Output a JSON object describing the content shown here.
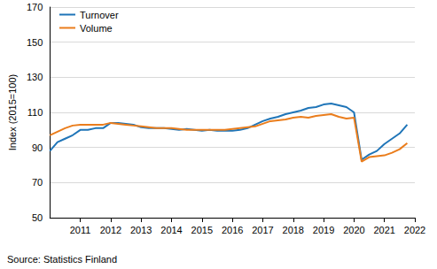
{
  "chart_data": {
    "type": "line",
    "y_label": "Index (2015=100)",
    "source": "Source: Statistics Finland",
    "x": [
      2010,
      2010.25,
      2010.5,
      2010.75,
      2011,
      2011.25,
      2011.5,
      2011.75,
      2012,
      2012.25,
      2012.5,
      2012.75,
      2013,
      2013.25,
      2013.5,
      2013.75,
      2014,
      2014.25,
      2014.5,
      2014.75,
      2015,
      2015.25,
      2015.5,
      2015.75,
      2016,
      2016.25,
      2016.5,
      2016.75,
      2017,
      2017.25,
      2017.5,
      2017.75,
      2018,
      2018.25,
      2018.5,
      2018.75,
      2019,
      2019.25,
      2019.5,
      2019.75,
      2020,
      2020.25,
      2020.5,
      2020.75,
      2021,
      2021.25,
      2021.5,
      2021.75
    ],
    "series": [
      {
        "name": "Turnover",
        "color": "#1f75b8",
        "values": [
          88,
          93,
          95,
          97,
          100,
          100,
          101,
          101,
          104,
          104,
          103.5,
          103,
          101.5,
          101,
          101,
          101,
          100.5,
          100,
          100.5,
          100,
          99.5,
          100,
          99.5,
          99.5,
          99.5,
          100,
          101,
          103,
          105,
          106.5,
          107.5,
          109,
          110,
          111,
          112.5,
          113,
          114.5,
          115,
          114,
          113,
          110,
          83,
          86,
          88,
          92,
          95,
          98,
          103
        ]
      },
      {
        "name": "Volume",
        "color": "#ea7d1c",
        "values": [
          97,
          99,
          101,
          102.5,
          103,
          103,
          103,
          103,
          104,
          103.5,
          103,
          102.5,
          102,
          101.5,
          101,
          101,
          101,
          100.5,
          100,
          100,
          100,
          100,
          100,
          100,
          100.5,
          101,
          101.5,
          102,
          103.5,
          105,
          105.5,
          106,
          107,
          107.5,
          107,
          108,
          108.5,
          109,
          107.5,
          106.5,
          107,
          82,
          84.5,
          85,
          85.5,
          87,
          89,
          92.5
        ]
      }
    ],
    "xlim": [
      2010,
      2022
    ],
    "xticks": [
      2011,
      2012,
      2013,
      2014,
      2015,
      2016,
      2017,
      2018,
      2019,
      2020,
      2021,
      2022
    ],
    "ylim": [
      50,
      170
    ],
    "yticks": [
      50,
      70,
      90,
      110,
      130,
      150,
      170
    ],
    "grid": true,
    "legend": "top-left"
  }
}
